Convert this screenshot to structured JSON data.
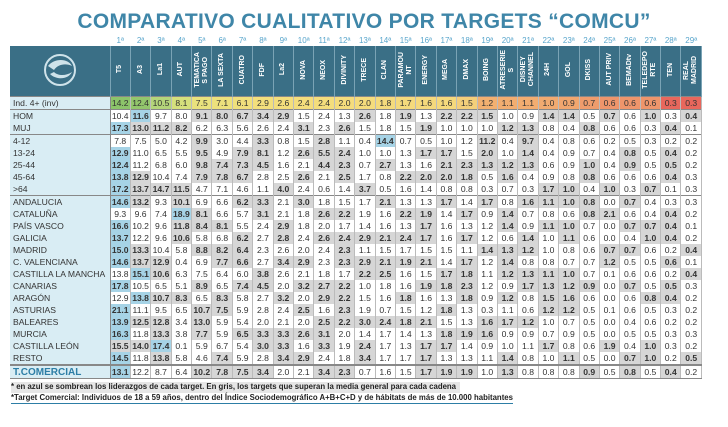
{
  "title": "COMPARATIVO CUALITATIVO POR TARGETS “COMCU”",
  "ranks": [
    "1ª",
    "2ª",
    "3ª",
    "4ª",
    "5ª",
    "6ª",
    "7ª",
    "8ª",
    "9ª",
    "10ª",
    "11ª",
    "12ª",
    "13ª",
    "14ª",
    "15ª",
    "16ª",
    "17ª",
    "18ª",
    "19ª",
    "20ª",
    "21ª",
    "22ª",
    "23ª",
    "24ª",
    "25ª",
    "26ª",
    "27ª",
    "28ª",
    "29ª"
  ],
  "channels": [
    "T5",
    "A3",
    "La1",
    "AUT",
    "TEMATICA\nS PAGO",
    "LA SEXTA",
    "CUATRO",
    "FDF",
    "La2",
    "NOVA",
    "NEOX",
    "DIVINITY",
    "TRECE",
    "CLAN",
    "PARAMOU\nNT",
    "ENERGY",
    "MEGA",
    "DMAX",
    "BOING",
    "ATRESERIE\nS",
    "DISNEY\nCHANNEL",
    "24H",
    "GOL",
    "DKISS",
    "AUT PRIV",
    "BEMADtv",
    "TELEDEPO\nRTE",
    "TEN",
    "REAL\nMADRID"
  ],
  "colors": {
    "header": "#3a6f86",
    "leader": "#a6d3e6",
    "above_avg": "#d6d6d6"
  },
  "ind_colors": [
    "#8cc46a",
    "#93c66c",
    "#b4d57a",
    "#d6e07c",
    "#e9e27d",
    "#ede17c",
    "#f0e07c",
    "#f3df7c",
    "#f4de7c",
    "#f4dd7c",
    "#f4dd7c",
    "#f5dc7c",
    "#f5dc7c",
    "#f5db7c",
    "#f5da7c",
    "#f5d97c",
    "#f5d97c",
    "#f4cf7a",
    "#f2b070",
    "#f2ad70",
    "#f2ad70",
    "#f1aa70",
    "#f1a66e",
    "#ef9c6c",
    "#ee956b",
    "#ee956b",
    "#ee956b",
    "#e8675c",
    "#e8675c"
  ],
  "rows": [
    {
      "label": "Ind. 4+ (inv)",
      "cls": "ind",
      "values": [
        14.2,
        12.4,
        10.5,
        8.1,
        7.5,
        7.1,
        6.1,
        2.9,
        2.6,
        2.4,
        2.4,
        2.0,
        2.0,
        1.8,
        1.7,
        1.6,
        1.6,
        1.5,
        1.2,
        1.1,
        1.1,
        1.0,
        0.9,
        0.7,
        0.6,
        0.6,
        0.6,
        0.3,
        0.3
      ]
    },
    {
      "label": "HOM",
      "cls": "sep",
      "values": [
        10.4,
        11.6,
        9.7,
        8.0,
        9.1,
        8.0,
        6.7,
        3.4,
        2.9,
        1.5,
        2.4,
        1.3,
        2.6,
        1.8,
        1.9,
        1.3,
        2.2,
        2.2,
        1.5,
        1.0,
        0.9,
        1.4,
        1.4,
        0.5,
        0.7,
        0.6,
        1.0,
        0.3,
        0.4
      ]
    },
    {
      "label": "MUJ",
      "values": [
        17.3,
        13.0,
        11.2,
        8.2,
        6.2,
        6.3,
        5.6,
        2.6,
        2.4,
        3.1,
        2.3,
        2.6,
        1.5,
        1.8,
        1.5,
        1.9,
        1.0,
        1.0,
        1.0,
        1.2,
        1.3,
        0.8,
        0.4,
        0.8,
        0.6,
        0.6,
        0.3,
        0.4,
        0.1
      ]
    },
    {
      "label": "4-12",
      "cls": "sep",
      "values": [
        7.8,
        7.5,
        5.0,
        4.2,
        9.9,
        3.0,
        4.4,
        3.3,
        0.8,
        1.5,
        2.8,
        1.1,
        0.4,
        14.4,
        0.7,
        0.5,
        1.0,
        1.2,
        11.2,
        0.4,
        9.7,
        0.4,
        0.8,
        0.6,
        0.2,
        0.5,
        0.3,
        0.2,
        0.2
      ]
    },
    {
      "label": "13-24",
      "values": [
        12.9,
        11.0,
        6.5,
        5.5,
        9.5,
        4.9,
        7.9,
        8.1,
        1.2,
        2.6,
        5.5,
        2.4,
        1.0,
        1.0,
        1.3,
        1.7,
        1.7,
        1.5,
        2.0,
        1.0,
        1.4,
        0.4,
        0.9,
        0.7,
        0.4,
        0.8,
        0.5,
        0.4,
        0.2
      ]
    },
    {
      "label": "25-44",
      "values": [
        12.4,
        11.2,
        6.8,
        6.0,
        9.8,
        7.4,
        7.3,
        4.5,
        1.6,
        2.1,
        4.4,
        2.3,
        0.7,
        2.7,
        1.3,
        1.6,
        2.1,
        2.3,
        1.3,
        1.2,
        1.3,
        0.6,
        0.9,
        1.0,
        0.4,
        0.9,
        0.5,
        0.5,
        0.2
      ]
    },
    {
      "label": "45-64",
      "values": [
        13.8,
        12.9,
        10.4,
        7.4,
        7.9,
        7.8,
        6.7,
        2.8,
        2.5,
        2.6,
        2.1,
        2.5,
        1.7,
        0.8,
        2.2,
        2.0,
        2.0,
        1.8,
        0.5,
        1.6,
        0.4,
        0.9,
        0.8,
        0.8,
        0.6,
        0.6,
        0.6,
        0.4,
        0.3
      ]
    },
    {
      "label": ">64",
      "values": [
        17.2,
        13.7,
        14.7,
        11.5,
        4.7,
        7.1,
        4.6,
        1.1,
        4.0,
        2.4,
        0.6,
        1.4,
        3.7,
        0.5,
        1.6,
        1.4,
        0.8,
        0.8,
        0.3,
        0.7,
        0.3,
        1.7,
        1.0,
        0.4,
        1.0,
        0.3,
        0.7,
        0.1,
        0.3
      ]
    },
    {
      "label": "ANDALUCIA",
      "cls": "sep",
      "values": [
        14.6,
        13.2,
        9.3,
        10.1,
        6.9,
        6.6,
        6.2,
        3.3,
        2.1,
        3.0,
        1.8,
        1.5,
        1.7,
        2.1,
        1.3,
        1.3,
        1.7,
        1.4,
        1.7,
        0.8,
        1.6,
        1.1,
        1.0,
        0.8,
        0.0,
        0.7,
        0.4,
        0.3,
        0.3
      ]
    },
    {
      "label": "CATALUÑA",
      "values": [
        9.3,
        9.6,
        7.4,
        18.9,
        8.1,
        6.6,
        5.7,
        3.1,
        2.1,
        1.8,
        2.6,
        2.2,
        1.9,
        1.6,
        2.2,
        1.9,
        1.4,
        1.7,
        0.9,
        1.4,
        0.7,
        0.8,
        0.6,
        0.8,
        2.1,
        0.6,
        0.4,
        0.4,
        0.2
      ]
    },
    {
      "label": "PAÍS VASCO",
      "values": [
        16.6,
        10.2,
        9.6,
        11.8,
        8.4,
        8.1,
        5.5,
        2.4,
        2.9,
        1.8,
        2.0,
        1.7,
        1.4,
        1.6,
        1.3,
        1.7,
        1.6,
        1.3,
        1.2,
        1.4,
        0.9,
        1.1,
        1.0,
        0.7,
        0.0,
        0.7,
        0.7,
        0.4,
        0.1
      ]
    },
    {
      "label": "GALICIA",
      "values": [
        13.7,
        12.2,
        9.6,
        10.6,
        5.8,
        6.8,
        6.2,
        2.7,
        2.8,
        2.4,
        2.6,
        2.4,
        2.9,
        2.1,
        2.4,
        1.7,
        1.6,
        1.7,
        1.2,
        0.6,
        1.4,
        1.0,
        1.1,
        0.6,
        0.0,
        0.4,
        1.0,
        0.4,
        0.2
      ]
    },
    {
      "label": "MADRID",
      "values": [
        15.0,
        13.3,
        10.4,
        5.8,
        8.8,
        8.2,
        6.4,
        2.3,
        2.6,
        2.0,
        2.4,
        2.3,
        1.1,
        1.5,
        1.7,
        1.5,
        1.5,
        1.1,
        1.4,
        1.3,
        1.2,
        1.0,
        0.8,
        0.6,
        0.7,
        0.7,
        0.6,
        0.2,
        0.4
      ]
    },
    {
      "label": "C. VALENCIANA",
      "values": [
        14.6,
        13.7,
        12.9,
        0.4,
        6.9,
        7.7,
        6.6,
        2.7,
        3.4,
        2.9,
        2.3,
        2.3,
        2.9,
        2.1,
        1.9,
        2.1,
        1.4,
        1.7,
        1.2,
        1.4,
        0.8,
        0.8,
        0.7,
        0.7,
        1.2,
        0.5,
        0.5,
        0.6,
        0.1
      ]
    },
    {
      "label": "CASTILLA LA MANCHA",
      "values": [
        13.8,
        15.1,
        10.6,
        6.3,
        7.5,
        6.4,
        6.0,
        3.8,
        2.6,
        2.1,
        1.8,
        1.7,
        2.2,
        2.5,
        1.6,
        1.5,
        1.7,
        1.8,
        1.1,
        1.2,
        1.3,
        1.1,
        1.0,
        0.7,
        0.1,
        0.6,
        0.6,
        0.2,
        0.4
      ]
    },
    {
      "label": "CANARIAS",
      "values": [
        17.8,
        10.5,
        6.5,
        5.1,
        8.9,
        6.5,
        7.4,
        4.5,
        2.0,
        3.2,
        2.7,
        2.2,
        1.0,
        1.8,
        1.6,
        1.9,
        1.8,
        2.3,
        1.2,
        0.9,
        1.7,
        1.3,
        1.2,
        0.9,
        0.0,
        0.7,
        0.5,
        0.5,
        0.3
      ]
    },
    {
      "label": "ARAGÓN",
      "values": [
        12.9,
        13.8,
        10.7,
        8.3,
        6.5,
        8.3,
        5.8,
        2.7,
        3.2,
        2.0,
        2.9,
        2.2,
        1.5,
        1.6,
        1.8,
        1.6,
        1.3,
        1.8,
        0.9,
        1.2,
        0.8,
        1.5,
        1.6,
        0.6,
        0.0,
        0.6,
        0.8,
        0.4,
        0.2
      ]
    },
    {
      "label": "ASTURIAS",
      "values": [
        21.1,
        11.1,
        9.5,
        6.5,
        10.7,
        7.5,
        5.9,
        2.8,
        2.4,
        2.5,
        1.6,
        2.3,
        1.9,
        0.7,
        1.5,
        1.2,
        1.8,
        1.3,
        0.3,
        1.1,
        0.6,
        1.2,
        1.2,
        0.5,
        0.1,
        0.6,
        0.5,
        0.3,
        0.2
      ]
    },
    {
      "label": "BALEARES",
      "values": [
        13.9,
        12.5,
        12.8,
        3.4,
        13.0,
        5.9,
        5.4,
        2.0,
        2.1,
        2.0,
        2.5,
        2.2,
        3.0,
        2.4,
        1.8,
        2.1,
        1.5,
        1.3,
        1.6,
        1.7,
        1.2,
        1.0,
        0.7,
        0.5,
        0.0,
        0.4,
        0.6,
        0.2,
        0.2
      ]
    },
    {
      "label": "MURCIA",
      "values": [
        16.3,
        11.8,
        13.3,
        3.8,
        7.7,
        5.9,
        6.5,
        3.3,
        3.3,
        2.6,
        3.1,
        2.0,
        1.4,
        1.7,
        1.4,
        1.3,
        1.8,
        1.9,
        1.6,
        0.9,
        0.9,
        0.7,
        0.9,
        0.5,
        0.0,
        0.5,
        0.5,
        0.3,
        0.3
      ]
    },
    {
      "label": "CASTILLA LEÓN",
      "values": [
        15.5,
        14.0,
        17.4,
        0.1,
        5.9,
        6.7,
        5.4,
        3.0,
        3.3,
        1.6,
        3.3,
        1.9,
        2.4,
        1.7,
        1.3,
        1.7,
        1.7,
        1.4,
        0.9,
        1.0,
        1.1,
        1.7,
        0.8,
        0.6,
        1.9,
        0.4,
        1.0,
        0.3,
        0.2
      ]
    },
    {
      "label": "RESTO",
      "values": [
        14.5,
        11.8,
        13.8,
        5.8,
        4.6,
        7.4,
        5.9,
        2.8,
        3.4,
        2.9,
        2.4,
        1.8,
        3.4,
        1.7,
        1.7,
        1.7,
        1.3,
        1.3,
        1.1,
        1.4,
        0.8,
        1.0,
        1.1,
        0.5,
        0.0,
        0.7,
        1.0,
        0.2,
        0.5
      ]
    },
    {
      "label": "T.COMERCIAL",
      "cls": "tc",
      "values": [
        13.1,
        12.2,
        8.7,
        6.4,
        10.2,
        7.8,
        7.5,
        3.4,
        2.0,
        2.1,
        3.4,
        2.3,
        0.7,
        1.6,
        1.5,
        1.7,
        1.9,
        1.9,
        1.0,
        1.3,
        0.8,
        0.8,
        0.8,
        0.9,
        0.5,
        0.8,
        0.5,
        0.4,
        0.2
      ]
    }
  ],
  "notes": [
    "* en azul se sombrean los liderazgos de cada target. En gris, los targets que superan la media general para cada cadena",
    "*Target Comercial: Individuos de 18 a 59 años, dentro del Índice Sociodemográfico A+B+C+D y de hábitats de más de 10.000 habitantes"
  ]
}
